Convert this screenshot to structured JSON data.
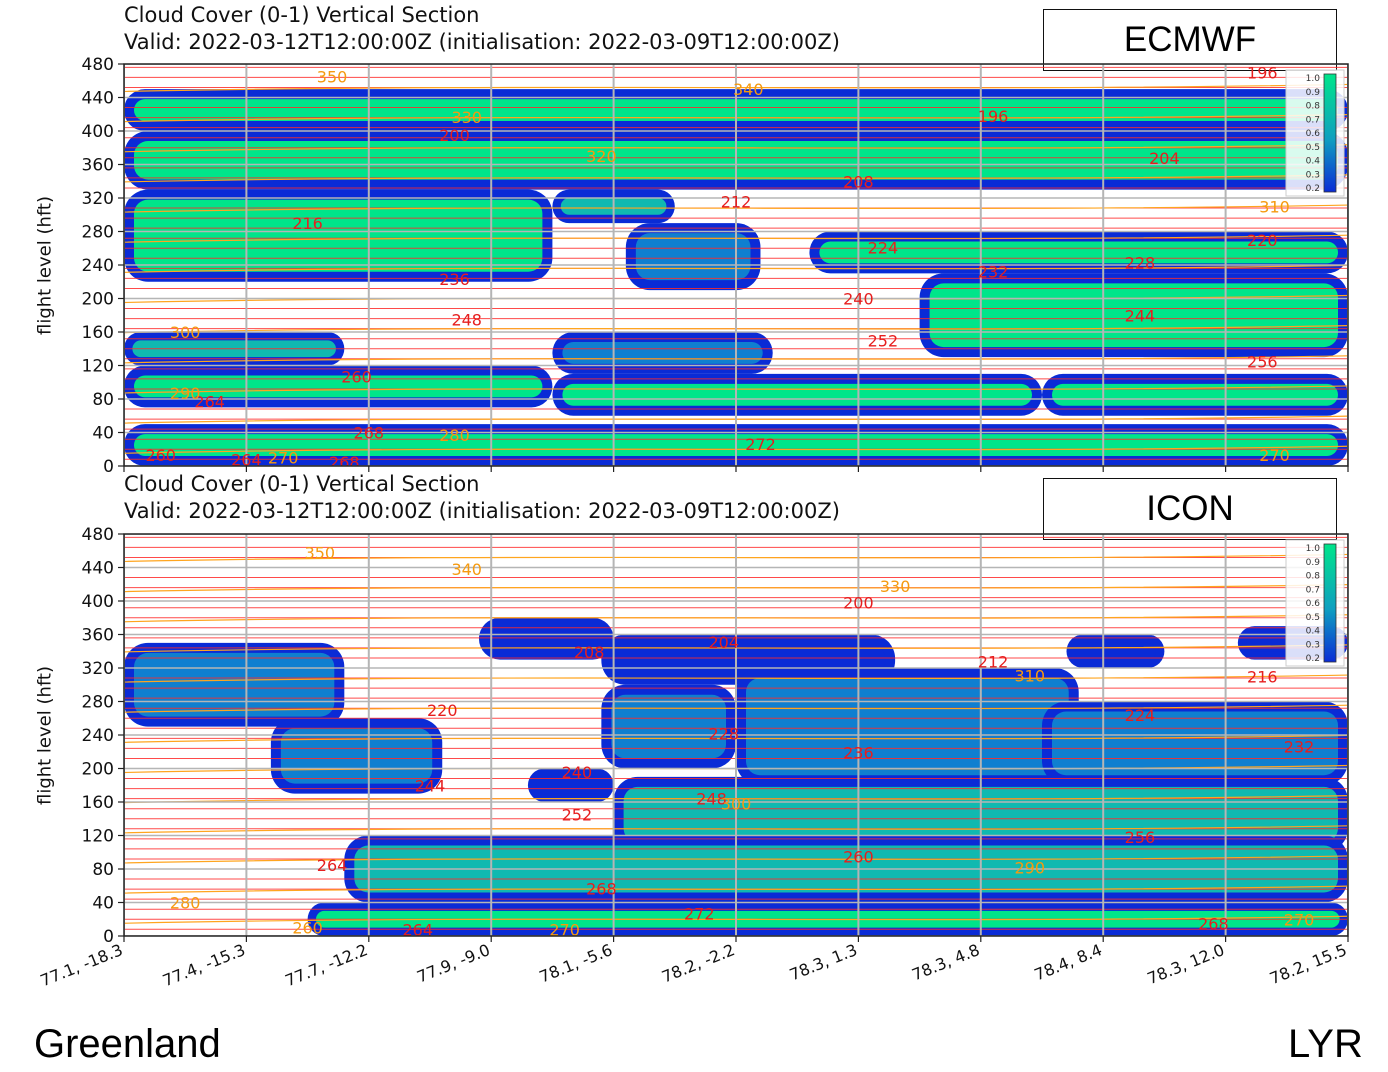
{
  "chart_data": [
    {
      "type": "heatmap",
      "model": "ECMWF",
      "title": "Cloud Cover (0-1) Vertical Section",
      "subtitle": "Valid: 2022-03-12T12:00:00Z (initialisation: 2022-03-09T12:00:00Z)",
      "ylabel": "flight level (hft)",
      "ylim": [
        0,
        480
      ],
      "yticks": [
        "0",
        "40",
        "80",
        "120",
        "160",
        "200",
        "240",
        "280",
        "320",
        "360",
        "400",
        "440",
        "480"
      ],
      "xticks": [
        "77.1, -18.3",
        "77.4, -15.3",
        "77.7, -12.2",
        "77.9, -9.0",
        "78.1, -5.6",
        "78.2, -2.2",
        "78.3, 1.3",
        "78.3, 4.8",
        "78.4, 8.4",
        "78.3, 12.0",
        "78.2, 15.5"
      ],
      "colorbar_ticks": [
        "1.0",
        "0.9",
        "0.8",
        "0.7",
        "0.6",
        "0.5",
        "0.4",
        "0.3",
        "0.2"
      ],
      "cloud_layers": [
        {
          "x0": 0.0,
          "x1": 10.0,
          "fl_bottom": 400,
          "fl_top": 450,
          "cover": 0.9
        },
        {
          "x0": 0.0,
          "x1": 10.0,
          "fl_bottom": 330,
          "fl_top": 400,
          "cover": 0.8
        },
        {
          "x0": 0.0,
          "x1": 3.5,
          "fl_bottom": 220,
          "fl_top": 330,
          "cover": 0.8
        },
        {
          "x0": 3.5,
          "x1": 4.5,
          "fl_bottom": 290,
          "fl_top": 330,
          "cover": 0.6
        },
        {
          "x0": 4.1,
          "x1": 5.2,
          "fl_bottom": 210,
          "fl_top": 290,
          "cover": 0.5
        },
        {
          "x0": 5.6,
          "x1": 10.0,
          "fl_bottom": 230,
          "fl_top": 280,
          "cover": 0.7
        },
        {
          "x0": 6.5,
          "x1": 10.0,
          "fl_bottom": 130,
          "fl_top": 230,
          "cover": 0.7
        },
        {
          "x0": 0.0,
          "x1": 1.8,
          "fl_bottom": 120,
          "fl_top": 160,
          "cover": 0.6
        },
        {
          "x0": 3.5,
          "x1": 5.3,
          "fl_bottom": 110,
          "fl_top": 160,
          "cover": 0.4
        },
        {
          "x0": 0.0,
          "x1": 3.5,
          "fl_bottom": 70,
          "fl_top": 120,
          "cover": 0.8
        },
        {
          "x0": 3.5,
          "x1": 7.5,
          "fl_bottom": 60,
          "fl_top": 110,
          "cover": 0.7
        },
        {
          "x0": 7.5,
          "x1": 10.0,
          "fl_bottom": 60,
          "fl_top": 110,
          "cover": 0.8
        },
        {
          "x0": 0.0,
          "x1": 10.0,
          "fl_bottom": 0,
          "fl_top": 50,
          "cover": 0.8
        }
      ],
      "temperature_labels": [
        {
          "text": "196",
          "x": 7.1,
          "fl": 418
        },
        {
          "text": "196",
          "x": 9.3,
          "fl": 470
        },
        {
          "text": "200",
          "x": 2.7,
          "fl": 395
        },
        {
          "text": "204",
          "x": 8.5,
          "fl": 368
        },
        {
          "text": "208",
          "x": 6.0,
          "fl": 340
        },
        {
          "text": "212",
          "x": 5.0,
          "fl": 316
        },
        {
          "text": "216",
          "x": 1.5,
          "fl": 290
        },
        {
          "text": "220",
          "x": 9.3,
          "fl": 270
        },
        {
          "text": "224",
          "x": 6.2,
          "fl": 261
        },
        {
          "text": "228",
          "x": 8.3,
          "fl": 243
        },
        {
          "text": "232",
          "x": 7.1,
          "fl": 232
        },
        {
          "text": "236",
          "x": 2.7,
          "fl": 223
        },
        {
          "text": "240",
          "x": 6.0,
          "fl": 200
        },
        {
          "text": "244",
          "x": 8.3,
          "fl": 180
        },
        {
          "text": "248",
          "x": 2.8,
          "fl": 175
        },
        {
          "text": "252",
          "x": 6.2,
          "fl": 150
        },
        {
          "text": "256",
          "x": 9.3,
          "fl": 125
        },
        {
          "text": "260",
          "x": 1.9,
          "fl": 107
        },
        {
          "text": "264",
          "x": 0.7,
          "fl": 77
        },
        {
          "text": "268",
          "x": 2.0,
          "fl": 40
        },
        {
          "text": "272",
          "x": 5.2,
          "fl": 26
        },
        {
          "text": "260",
          "x": 0.3,
          "fl": 13
        },
        {
          "text": "264",
          "x": 1.0,
          "fl": 8
        },
        {
          "text": "268",
          "x": 1.8,
          "fl": 5
        }
      ],
      "theta_labels": [
        {
          "text": "350",
          "x": 1.7,
          "fl": 465
        },
        {
          "text": "340",
          "x": 5.1,
          "fl": 450
        },
        {
          "text": "330",
          "x": 2.8,
          "fl": 417
        },
        {
          "text": "320",
          "x": 3.9,
          "fl": 370
        },
        {
          "text": "310",
          "x": 9.4,
          "fl": 310
        },
        {
          "text": "300",
          "x": 0.5,
          "fl": 160
        },
        {
          "text": "290",
          "x": 0.5,
          "fl": 87
        },
        {
          "text": "280",
          "x": 2.7,
          "fl": 37
        },
        {
          "text": "270",
          "x": 9.4,
          "fl": 13
        },
        {
          "text": "270",
          "x": 1.3,
          "fl": 10
        }
      ]
    },
    {
      "type": "heatmap",
      "model": "ICON",
      "title": "Cloud Cover (0-1) Vertical Section",
      "subtitle": "Valid: 2022-03-12T12:00:00Z (initialisation: 2022-03-09T12:00:00Z)",
      "ylabel": "flight level (hft)",
      "ylim": [
        0,
        480
      ],
      "yticks": [
        "0",
        "40",
        "80",
        "120",
        "160",
        "200",
        "240",
        "280",
        "320",
        "360",
        "400",
        "440",
        "480"
      ],
      "xticks": [
        "77.1, -18.3",
        "77.4, -15.3",
        "77.7, -12.2",
        "77.9, -9.0",
        "78.1, -5.6",
        "78.2, -2.2",
        "78.3, 1.3",
        "78.3, 4.8",
        "78.4, 8.4",
        "78.3, 12.0",
        "78.2, 15.5"
      ],
      "colorbar_ticks": [
        "1.0",
        "0.9",
        "0.8",
        "0.7",
        "0.6",
        "0.5",
        "0.4",
        "0.3",
        "0.2"
      ],
      "cloud_layers": [
        {
          "x0": 0.0,
          "x1": 1.8,
          "fl_bottom": 250,
          "fl_top": 350,
          "cover": 0.5
        },
        {
          "x0": 1.2,
          "x1": 2.6,
          "fl_bottom": 170,
          "fl_top": 260,
          "cover": 0.4
        },
        {
          "x0": 2.9,
          "x1": 4.0,
          "fl_bottom": 330,
          "fl_top": 380,
          "cover": 0.3
        },
        {
          "x0": 3.9,
          "x1": 6.3,
          "fl_bottom": 300,
          "fl_top": 360,
          "cover": 0.3
        },
        {
          "x0": 3.9,
          "x1": 5.0,
          "fl_bottom": 200,
          "fl_top": 300,
          "cover": 0.4
        },
        {
          "x0": 5.0,
          "x1": 7.8,
          "fl_bottom": 180,
          "fl_top": 320,
          "cover": 0.5
        },
        {
          "x0": 7.7,
          "x1": 8.5,
          "fl_bottom": 320,
          "fl_top": 360,
          "cover": 0.3
        },
        {
          "x0": 7.5,
          "x1": 10.0,
          "fl_bottom": 180,
          "fl_top": 280,
          "cover": 0.5
        },
        {
          "x0": 9.1,
          "x1": 10.0,
          "fl_bottom": 330,
          "fl_top": 370,
          "cover": 0.3
        },
        {
          "x0": 3.3,
          "x1": 4.0,
          "fl_bottom": 160,
          "fl_top": 200,
          "cover": 0.3
        },
        {
          "x0": 4.0,
          "x1": 10.0,
          "fl_bottom": 100,
          "fl_top": 190,
          "cover": 0.6
        },
        {
          "x0": 1.8,
          "x1": 10.0,
          "fl_bottom": 40,
          "fl_top": 120,
          "cover": 0.6
        },
        {
          "x0": 1.5,
          "x1": 10.0,
          "fl_bottom": 0,
          "fl_top": 40,
          "cover": 0.7
        }
      ],
      "temperature_labels": [
        {
          "text": "200",
          "x": 6.0,
          "fl": 398
        },
        {
          "text": "204",
          "x": 4.9,
          "fl": 351
        },
        {
          "text": "208",
          "x": 3.8,
          "fl": 339
        },
        {
          "text": "212",
          "x": 7.1,
          "fl": 328
        },
        {
          "text": "216",
          "x": 9.3,
          "fl": 310
        },
        {
          "text": "220",
          "x": 2.6,
          "fl": 270
        },
        {
          "text": "224",
          "x": 8.3,
          "fl": 264
        },
        {
          "text": "228",
          "x": 4.9,
          "fl": 242
        },
        {
          "text": "232",
          "x": 9.6,
          "fl": 226
        },
        {
          "text": "236",
          "x": 6.0,
          "fl": 219
        },
        {
          "text": "240",
          "x": 3.7,
          "fl": 196
        },
        {
          "text": "244",
          "x": 2.5,
          "fl": 180
        },
        {
          "text": "248",
          "x": 4.8,
          "fl": 164
        },
        {
          "text": "252",
          "x": 3.7,
          "fl": 145
        },
        {
          "text": "256",
          "x": 8.3,
          "fl": 118
        },
        {
          "text": "260",
          "x": 6.0,
          "fl": 95
        },
        {
          "text": "264",
          "x": 1.7,
          "fl": 85
        },
        {
          "text": "268",
          "x": 3.9,
          "fl": 57
        },
        {
          "text": "272",
          "x": 4.7,
          "fl": 27
        },
        {
          "text": "268",
          "x": 8.9,
          "fl": 15
        },
        {
          "text": "264",
          "x": 2.4,
          "fl": 8
        }
      ],
      "theta_labels": [
        {
          "text": "350",
          "x": 1.6,
          "fl": 458
        },
        {
          "text": "340",
          "x": 2.8,
          "fl": 438
        },
        {
          "text": "330",
          "x": 6.3,
          "fl": 418
        },
        {
          "text": "310",
          "x": 7.4,
          "fl": 311
        },
        {
          "text": "300",
          "x": 5.0,
          "fl": 158
        },
        {
          "text": "290",
          "x": 7.4,
          "fl": 82
        },
        {
          "text": "280",
          "x": 0.5,
          "fl": 40
        },
        {
          "text": "270",
          "x": 3.6,
          "fl": 8
        },
        {
          "text": "270",
          "x": 9.6,
          "fl": 20
        },
        {
          "text": "260",
          "x": 1.5,
          "fl": 10
        }
      ]
    }
  ],
  "endpoints": {
    "left": "Greenland",
    "right": "LYR"
  },
  "colors": {
    "cloud_low": "#0a2bd6",
    "cloud_mid": "#0f7fd0",
    "cloud_high": "#00e58a",
    "temperature_contour": "#ff2a2a",
    "theta_contour": "#ffa51f",
    "grid": "#b5b5b5"
  }
}
